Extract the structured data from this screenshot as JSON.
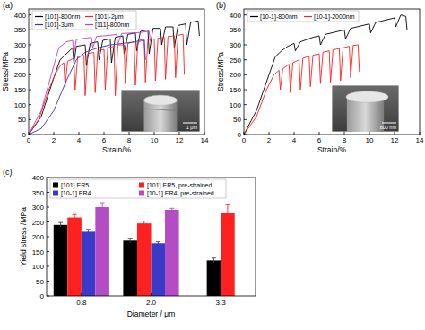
{
  "chart_data": [
    {
      "type": "line",
      "title": "(a)",
      "x_label": "Strain/%",
      "y_label": "Stress/MPa",
      "xlim": [
        0,
        14
      ],
      "ylim": [
        0,
        420
      ],
      "xticks": [
        0,
        2,
        4,
        6,
        8,
        10,
        12,
        14
      ],
      "yticks": [
        0,
        50,
        100,
        150,
        200,
        250,
        300,
        350,
        400
      ],
      "grid": false,
      "legend": "upper left",
      "annotations": [
        "1 μm"
      ],
      "series": [
        {
          "name": "[101]-800nm",
          "color": "#000000",
          "x": [
            0,
            1,
            2,
            2.5,
            3,
            3.5,
            3.6,
            3.8,
            4.5,
            4.6,
            4.9,
            5.5,
            5.6,
            5.9,
            6.5,
            6.6,
            6.9,
            7.5,
            7.6,
            7.9,
            8.5,
            8.6,
            8.9,
            9.5,
            9.6,
            9.9,
            10.5,
            10.6,
            10.9,
            11.5,
            11.6,
            11.9,
            12.5,
            12.6,
            12.9,
            13.5,
            13.6
          ],
          "values": [
            0,
            60,
            190,
            250,
            270,
            290,
            240,
            295,
            300,
            230,
            305,
            310,
            250,
            315,
            320,
            240,
            325,
            330,
            270,
            335,
            340,
            280,
            345,
            350,
            270,
            355,
            355,
            300,
            360,
            360,
            290,
            365,
            370,
            300,
            375,
            380,
            330
          ]
        },
        {
          "name": "[101]-2μm",
          "color": "#ff2020",
          "x": [
            0,
            0.8,
            1.6,
            2.1,
            2.5,
            2.8,
            2.9,
            3.1,
            3.6,
            3.7,
            3.9,
            4.4,
            4.5,
            4.7,
            5.2,
            5.3,
            5.5,
            6,
            6.1,
            6.3,
            6.8,
            6.9,
            7.1,
            7.6,
            7.7,
            7.9,
            8.4,
            8.5,
            8.7,
            9.2,
            9.3,
            9.5,
            10,
            10.1,
            10.3,
            10.8,
            10.9,
            11.1,
            11.6,
            11.7,
            11.9,
            12.3,
            12.4
          ],
          "values": [
            0,
            50,
            150,
            200,
            230,
            240,
            160,
            245,
            255,
            150,
            260,
            265,
            130,
            270,
            275,
            140,
            280,
            285,
            150,
            290,
            295,
            130,
            300,
            300,
            170,
            305,
            310,
            165,
            310,
            315,
            175,
            318,
            320,
            180,
            322,
            325,
            185,
            328,
            330,
            190,
            332,
            335,
            200
          ]
        },
        {
          "name": "[101]-3μm",
          "color": "#3333cc",
          "x": [
            0,
            1,
            2,
            3,
            3.8,
            4.5,
            5.5,
            6.5,
            7.5,
            8.5,
            9.2,
            9.3
          ],
          "values": [
            0,
            20,
            80,
            180,
            250,
            275,
            290,
            300,
            305,
            310,
            320,
            250
          ]
        },
        {
          "name": "[111]-800nm",
          "color": "#c040c0",
          "x": [
            0,
            1,
            2,
            2.4,
            3,
            3.5,
            3.6,
            3.8,
            4.5,
            5,
            5.1,
            5.4,
            6.5,
            7,
            7.1,
            7.4,
            8.5,
            9,
            9.6,
            9.7
          ],
          "values": [
            0,
            80,
            230,
            290,
            310,
            315,
            270,
            318,
            322,
            325,
            290,
            328,
            332,
            335,
            300,
            338,
            340,
            342,
            345,
            310
          ]
        }
      ]
    },
    {
      "type": "line",
      "title": "(b)",
      "x_label": "Strain/%",
      "y_label": "Stress/MPa",
      "xlim": [
        0,
        14
      ],
      "ylim": [
        0,
        420
      ],
      "xticks": [
        0,
        2,
        4,
        6,
        8,
        10,
        12,
        14
      ],
      "yticks": [
        0,
        50,
        100,
        150,
        200,
        250,
        300,
        350,
        400
      ],
      "grid": false,
      "legend": "upper left",
      "annotations": [
        "800 nm"
      ],
      "series": [
        {
          "name": "[10-1]-800nm",
          "color": "#000000",
          "x": [
            0,
            1,
            2,
            2.5,
            3,
            3.5,
            4,
            4.1,
            4.5,
            5.5,
            6,
            6.1,
            6.5,
            7.5,
            8,
            8.1,
            8.5,
            9.5,
            10,
            10.1,
            10.5,
            11.5,
            12,
            12.1,
            12.5,
            12.9,
            13
          ],
          "values": [
            0,
            80,
            200,
            260,
            280,
            295,
            305,
            280,
            310,
            325,
            330,
            300,
            335,
            345,
            350,
            320,
            355,
            365,
            370,
            340,
            375,
            385,
            390,
            360,
            400,
            395,
            350
          ]
        },
        {
          "name": "[10-1]-2000nm",
          "color": "#ff2020",
          "x": [
            0,
            1,
            1.8,
            2.4,
            2.8,
            2.9,
            3.1,
            3.6,
            3.7,
            3.9,
            4.4,
            4.5,
            4.7,
            5.2,
            5.3,
            5.5,
            6,
            6.1,
            6.3,
            6.8,
            6.9,
            7.1,
            7.6,
            7.7,
            7.9,
            8.4,
            8.5,
            8.7,
            9.1,
            9.2
          ],
          "values": [
            0,
            60,
            150,
            200,
            215,
            150,
            220,
            235,
            140,
            240,
            250,
            150,
            255,
            262,
            160,
            265,
            270,
            170,
            275,
            280,
            175,
            283,
            288,
            180,
            290,
            295,
            190,
            298,
            300,
            210
          ]
        }
      ]
    },
    {
      "type": "bar",
      "title": "(c)",
      "x_label": "Diameter / μm",
      "y_label": "Yield stress /MPa",
      "categories": [
        "0.8",
        "2.0",
        "3.3"
      ],
      "ylim": [
        0,
        400
      ],
      "yticks": [
        0,
        50,
        100,
        150,
        200,
        250,
        300,
        350,
        400
      ],
      "grid": false,
      "legend": "upper left",
      "series": [
        {
          "name": "[101] ER5",
          "color": "#000000",
          "values": [
            240,
            187,
            120
          ],
          "errors": [
            8,
            8,
            8
          ]
        },
        {
          "name": "[101] ER5, pre-strained",
          "color": "#ff2020",
          "values": [
            265,
            245,
            280
          ],
          "errors": [
            10,
            8,
            28
          ]
        },
        {
          "name": "[10-1] ER4",
          "color": "#3a3ac8",
          "values": [
            217,
            178,
            null
          ],
          "errors": [
            8,
            5,
            null
          ]
        },
        {
          "name": "[10-1] ER4, pre-strained",
          "color": "#b44cc4",
          "values": [
            300,
            291,
            null
          ],
          "errors": [
            15,
            5,
            null
          ]
        }
      ]
    }
  ]
}
